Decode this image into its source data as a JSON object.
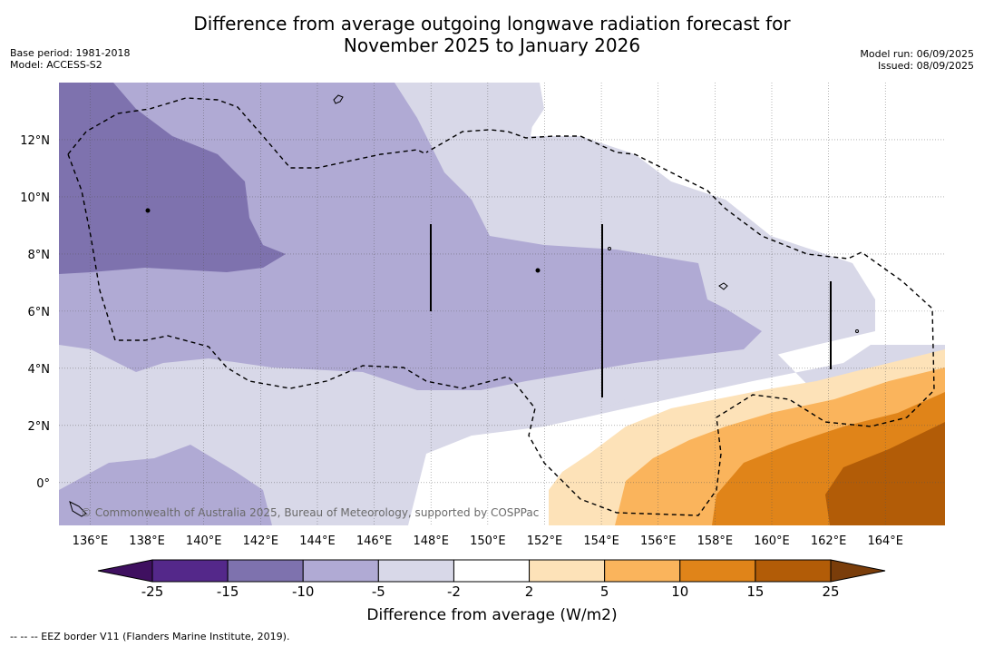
{
  "header": {
    "title_line1": "Difference from average outgoing longwave radiation forecast for",
    "title_line2": "November 2025 to January 2026",
    "base_period": "Base period: 1981-2018",
    "model": "Model: ACCESS-S2",
    "model_run": "Model run: 06/09/2025",
    "issued": "Issued: 08/09/2025"
  },
  "chart_data": {
    "type": "heatmap",
    "title": "Difference from average outgoing longwave radiation forecast for November 2025 to January 2026",
    "x_axis": {
      "ticks": [
        "136°E",
        "138°E",
        "140°E",
        "142°E",
        "144°E",
        "146°E",
        "148°E",
        "150°E",
        "152°E",
        "154°E",
        "156°E",
        "158°E",
        "160°E",
        "162°E",
        "164°E"
      ],
      "range": [
        134.9,
        166.1
      ]
    },
    "y_axis": {
      "ticks": [
        "0°",
        "2°N",
        "4°N",
        "6°N",
        "8°N",
        "10°N",
        "12°N"
      ],
      "range": [
        -1.5,
        14.0
      ]
    },
    "grid": true,
    "colorbar": {
      "label": "Difference from average (W/m2)",
      "boundaries": [
        "-25",
        "-15",
        "-10",
        "-5",
        "-2",
        "2",
        "5",
        "10",
        "15",
        "25"
      ],
      "colors": [
        "#3f1060",
        "#54288a",
        "#7e72ae",
        "#b0aad4",
        "#d8d8e8",
        "#ffffff",
        "#fde2b8",
        "#fab45c",
        "#e08419",
        "#b25c07",
        "#7a3d0a"
      ],
      "extend": "both"
    },
    "region_values_wm2": [
      {
        "region": "north-west",
        "range": "-15 to -10"
      },
      {
        "region": "central band 4°N–9°N",
        "range": "-10 to -5"
      },
      {
        "region": "south-west and central",
        "range": "-5 to -2"
      },
      {
        "region": "equatorial west",
        "range": "-2 to 2"
      },
      {
        "region": "north-east",
        "range": "-2 to 2"
      },
      {
        "region": "south-east",
        "range": "2 to 25"
      }
    ],
    "legend": "--  --  -- EEZ border V11 (Flanders Marine Institute, 2019).",
    "credit": "© Commonwealth of Australia 2025, Bureau of Meteorology, supported by COSPPac"
  },
  "footnote": "--  --  -- EEZ border V11 (Flanders Marine Institute, 2019).",
  "credit": "© Commonwealth of Australia 2025, Bureau of Meteorology, supported by COSPPac"
}
